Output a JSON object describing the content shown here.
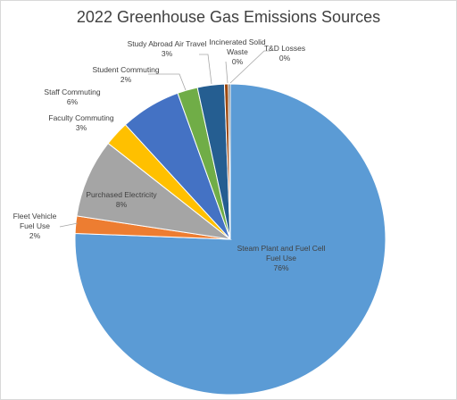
{
  "chart_data": {
    "type": "pie",
    "title": "2022 Greenhouse Gas Emissions Sources",
    "categories": [
      "Steam Plant and Fuel Cell Fuel Use",
      "Fleet Vehicle Fuel Use",
      "Purchased Electricity",
      "Faculty Commuting",
      "Staff Commuting",
      "Student Commuting",
      "Study Abroad Air Travel",
      "Incinerated Solid Waste",
      "T&D Losses"
    ],
    "values": [
      75.6,
      1.8,
      8.2,
      2.6,
      6.3,
      2.1,
      2.8,
      0.4,
      0.2
    ],
    "value_labels": [
      "76%",
      "2%",
      "8%",
      "3%",
      "6%",
      "2%",
      "3%",
      "0%",
      "0%"
    ],
    "colors": [
      "#5b9bd5",
      "#ed7d31",
      "#a5a5a5",
      "#ffc000",
      "#4472c4",
      "#70ad47",
      "#255e91",
      "#9e480e",
      "#636363"
    ]
  }
}
